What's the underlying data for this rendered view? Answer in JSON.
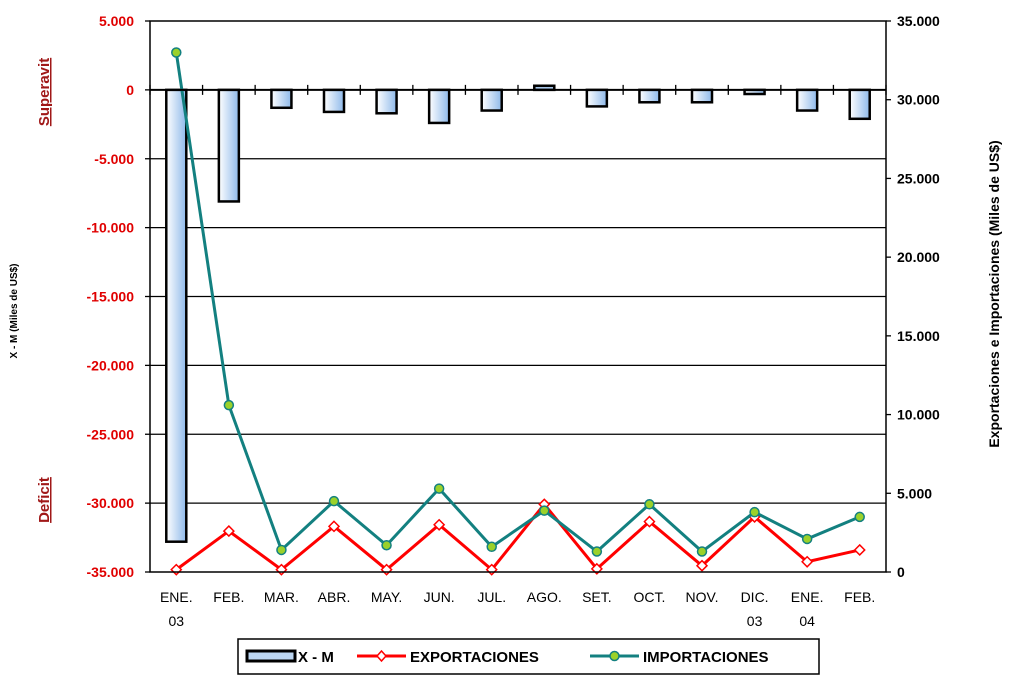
{
  "chart_data": {
    "type": "bar+line",
    "categories": [
      [
        "ENE.",
        "03"
      ],
      [
        "FEB.",
        ""
      ],
      [
        "MAR.",
        ""
      ],
      [
        "ABR.",
        ""
      ],
      [
        "MAY.",
        ""
      ],
      [
        "JUN.",
        ""
      ],
      [
        "JUL.",
        ""
      ],
      [
        "AGO.",
        ""
      ],
      [
        "SET.",
        ""
      ],
      [
        "OCT.",
        ""
      ],
      [
        "NOV.",
        ""
      ],
      [
        "DIC.",
        "03"
      ],
      [
        "ENE.",
        "04"
      ],
      [
        "FEB.",
        ""
      ]
    ],
    "y_left": {
      "label": "X - M (Miles de US$)",
      "range": [
        -35000,
        5000
      ],
      "ticks": [
        5000,
        0,
        -5000,
        -10000,
        -15000,
        -20000,
        -25000,
        -30000,
        -35000
      ],
      "tick_labels": [
        "5.000",
        "0",
        "-5.000",
        "-10.000",
        "-15.000",
        "-20.000",
        "-25.000",
        "-30.000",
        "-35.000"
      ]
    },
    "y_right": {
      "label": "Exportaciones e Importaciones (Miles de US$)",
      "range": [
        0,
        35000
      ],
      "ticks": [
        35000,
        30000,
        25000,
        20000,
        15000,
        10000,
        5000,
        0
      ],
      "tick_labels": [
        "35.000",
        "30.000",
        "25.000",
        "20.000",
        "15.000",
        "10.000",
        "5.000",
        "0"
      ]
    },
    "grid": true,
    "annotations": {
      "surplus": "Superavit",
      "deficit": "Deficit"
    },
    "series": [
      {
        "name": "X - M",
        "kind": "bar",
        "axis": "left",
        "values": [
          -32800,
          -8100,
          -1300,
          -1600,
          -1700,
          -2400,
          -1500,
          300,
          -1200,
          -900,
          -900,
          -300,
          -1500,
          -2100
        ]
      },
      {
        "name": "EXPORTACIONES",
        "kind": "line",
        "axis": "right",
        "color": "#ff0000",
        "marker": "diamond",
        "values": [
          150,
          2600,
          150,
          2900,
          150,
          3000,
          150,
          4300,
          200,
          3200,
          400,
          3500,
          650,
          1400
        ]
      },
      {
        "name": "IMPORTACIONES",
        "kind": "line",
        "axis": "right",
        "color": "#138080",
        "marker": "circle",
        "values": [
          33000,
          10600,
          1400,
          4500,
          1700,
          5300,
          1600,
          3900,
          1300,
          4300,
          1300,
          3800,
          2100,
          3500
        ]
      }
    ],
    "legend": {
      "position": "bottom-center"
    }
  }
}
